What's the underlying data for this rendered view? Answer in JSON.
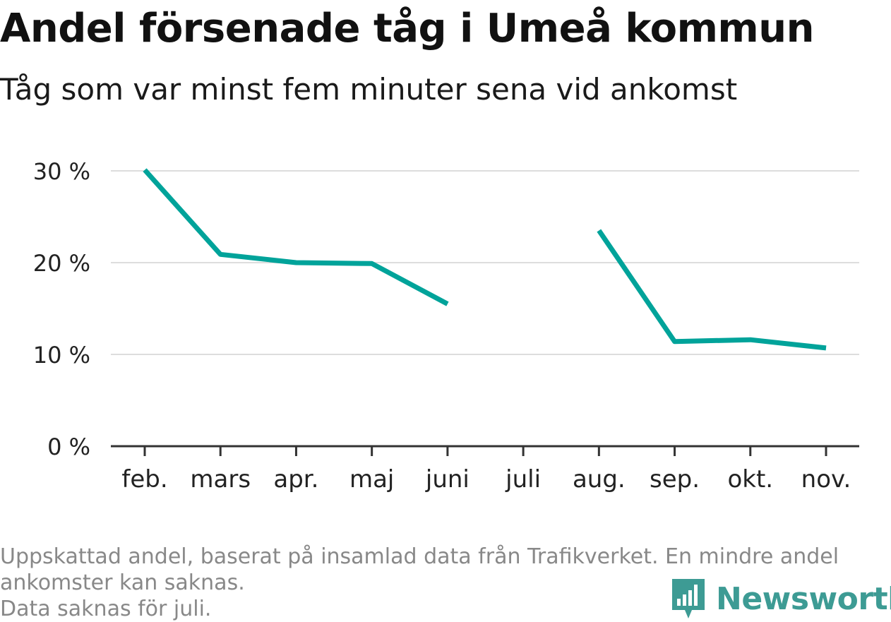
{
  "title": "Andel försenade tåg i Umeå kommun",
  "subtitle": "Tåg som var minst fem minuter sena vid ankomst",
  "footnote": {
    "line1": "Uppskattad andel, baserat på insamlad data från Trafikverket. En mindre andel",
    "line2": "ankomster kan saknas.",
    "line3": "Data saknas för juli."
  },
  "brand": {
    "name": "Newsworthy",
    "icon": "newsworthy-logo-icon",
    "color": "#3d9b94"
  },
  "chart_data": {
    "type": "line",
    "categories": [
      "feb.",
      "mars",
      "apr.",
      "maj",
      "juni",
      "juli",
      "aug.",
      "sep.",
      "okt.",
      "nov."
    ],
    "series": [
      {
        "values": [
          30.1,
          20.9,
          20.0,
          19.9,
          15.5,
          null,
          23.5,
          11.4,
          11.6,
          10.7
        ]
      }
    ],
    "yticks": [
      0,
      10,
      20,
      30
    ],
    "ytick_labels": [
      "0 %",
      "10 %",
      "20 %",
      "30 %"
    ],
    "ylim": [
      0,
      30
    ],
    "grid": true,
    "line_color": "#00a39a",
    "grid_color": "#dddddd",
    "axis_color": "#333333"
  }
}
